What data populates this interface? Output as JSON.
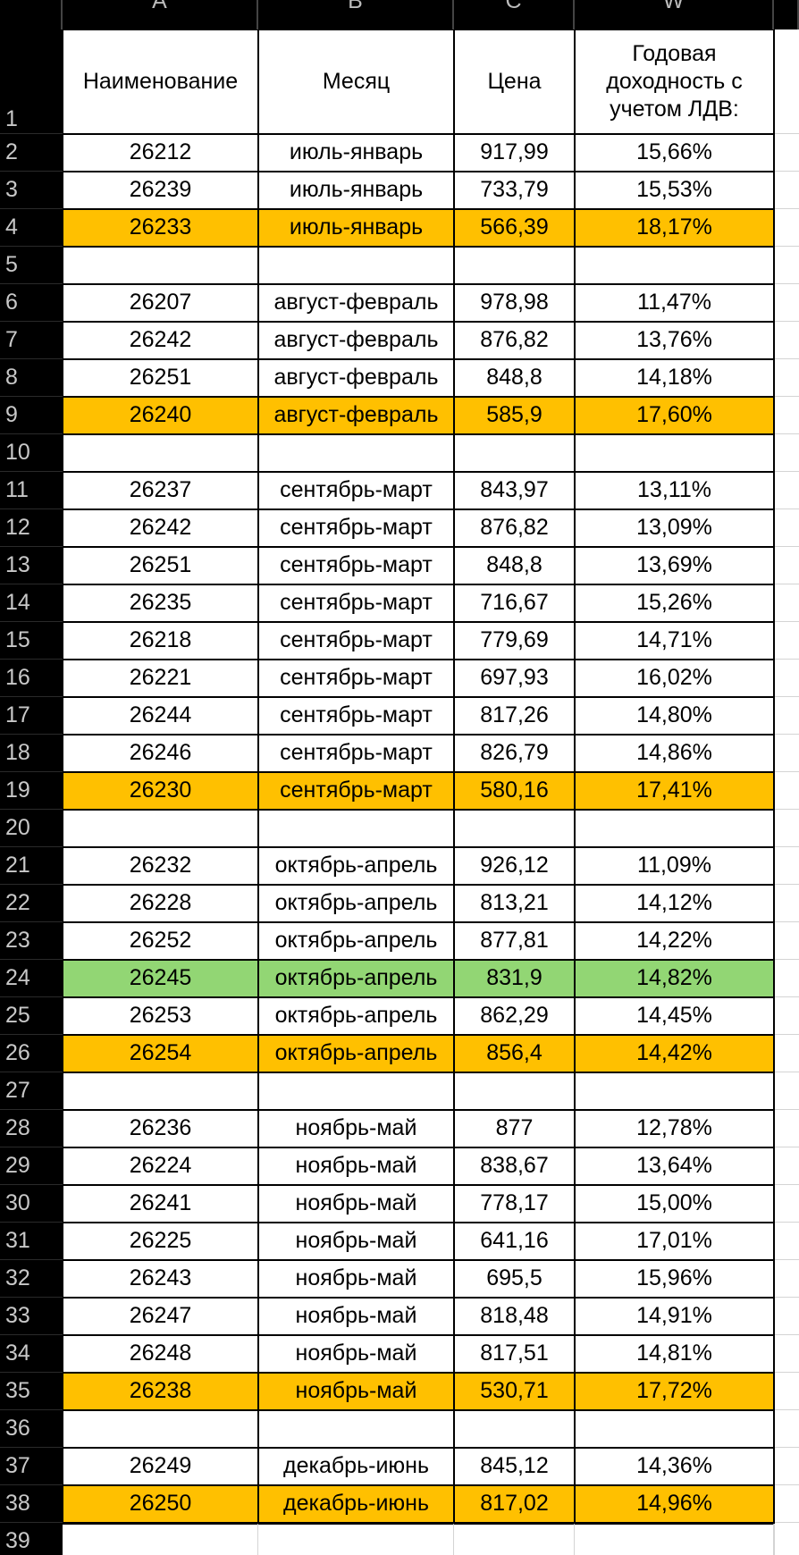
{
  "columns": [
    "A",
    "B",
    "C",
    "W"
  ],
  "row_numbers": [
    1,
    2,
    3,
    4,
    5,
    6,
    7,
    8,
    9,
    10,
    11,
    12,
    13,
    14,
    15,
    16,
    17,
    18,
    19,
    20,
    21,
    22,
    23,
    24,
    25,
    26,
    27,
    28,
    29,
    30,
    31,
    32,
    33,
    34,
    35,
    36,
    37,
    38,
    39
  ],
  "header": [
    "Наименование",
    "Месяц",
    "Цена",
    "Годовая доходность с учетом ЛДВ:"
  ],
  "rows": [
    {
      "cells": [
        "26212",
        "июль-январь",
        "917,99",
        "15,66%"
      ]
    },
    {
      "cells": [
        "26239",
        "июль-январь",
        "733,79",
        "15,53%"
      ]
    },
    {
      "cells": [
        "26233",
        "июль-январь",
        "566,39",
        "18,17%"
      ],
      "fill": "#ffc000"
    },
    null,
    {
      "cells": [
        "26207",
        "август-февраль",
        "978,98",
        "11,47%"
      ]
    },
    {
      "cells": [
        "26242",
        "август-февраль",
        "876,82",
        "13,76%"
      ]
    },
    {
      "cells": [
        "26251",
        "август-февраль",
        "848,8",
        "14,18%"
      ]
    },
    {
      "cells": [
        "26240",
        "август-февраль",
        "585,9",
        "17,60%"
      ],
      "fill": "#ffc000"
    },
    null,
    {
      "cells": [
        "26237",
        "сентябрь-март",
        "843,97",
        "13,11%"
      ]
    },
    {
      "cells": [
        "26242",
        "сентябрь-март",
        "876,82",
        "13,09%"
      ]
    },
    {
      "cells": [
        "26251",
        "сентябрь-март",
        "848,8",
        "13,69%"
      ]
    },
    {
      "cells": [
        "26235",
        "сентябрь-март",
        "716,67",
        "15,26%"
      ]
    },
    {
      "cells": [
        "26218",
        "сентябрь-март",
        "779,69",
        "14,71%"
      ]
    },
    {
      "cells": [
        "26221",
        "сентябрь-март",
        "697,93",
        "16,02%"
      ]
    },
    {
      "cells": [
        "26244",
        "сентябрь-март",
        "817,26",
        "14,80%"
      ]
    },
    {
      "cells": [
        "26246",
        "сентябрь-март",
        "826,79",
        "14,86%"
      ]
    },
    {
      "cells": [
        "26230",
        "сентябрь-март",
        "580,16",
        "17,41%"
      ],
      "fill": "#ffc000"
    },
    null,
    {
      "cells": [
        "26232",
        "октябрь-апрель",
        "926,12",
        "11,09%"
      ]
    },
    {
      "cells": [
        "26228",
        "октябрь-апрель",
        "813,21",
        "14,12%"
      ]
    },
    {
      "cells": [
        "26252",
        "октябрь-апрель",
        "877,81",
        "14,22%"
      ]
    },
    {
      "cells": [
        "26245",
        "октябрь-апрель",
        "831,9",
        "14,82%"
      ],
      "fill": "#92d674"
    },
    {
      "cells": [
        "26253",
        "октябрь-апрель",
        "862,29",
        "14,45%"
      ]
    },
    {
      "cells": [
        "26254",
        "октябрь-апрель",
        "856,4",
        "14,42%"
      ],
      "fill": "#ffc000"
    },
    null,
    {
      "cells": [
        "26236",
        "ноябрь-май",
        "877",
        "12,78%"
      ]
    },
    {
      "cells": [
        "26224",
        "ноябрь-май",
        "838,67",
        "13,64%"
      ]
    },
    {
      "cells": [
        "26241",
        "ноябрь-май",
        "778,17",
        "15,00%"
      ]
    },
    {
      "cells": [
        "26225",
        "ноябрь-май",
        "641,16",
        "17,01%"
      ]
    },
    {
      "cells": [
        "26243",
        "ноябрь-май",
        "695,5",
        "15,96%"
      ]
    },
    {
      "cells": [
        "26247",
        "ноябрь-май",
        "818,48",
        "14,91%"
      ]
    },
    {
      "cells": [
        "26248",
        "ноябрь-май",
        "817,51",
        "14,81%"
      ]
    },
    {
      "cells": [
        "26238",
        "ноябрь-май",
        "530,71",
        "17,72%"
      ],
      "fill": "#ffc000"
    },
    null,
    {
      "cells": [
        "26249",
        "декабрь-июнь",
        "845,12",
        "14,36%"
      ]
    },
    {
      "cells": [
        "26250",
        "декабрь-июнь",
        "817,02",
        "14,96%"
      ],
      "fill": "#ffc000"
    }
  ]
}
